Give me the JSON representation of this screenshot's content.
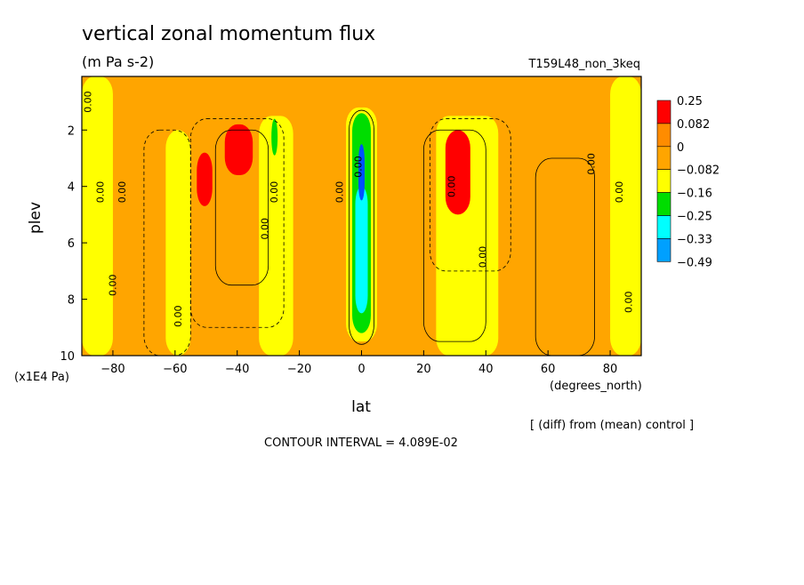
{
  "chart_data": {
    "type": "heatmap",
    "title": "vertical zonal momentum flux",
    "units": "(m Pa s-2)",
    "run_label": "T159L48_non_3keq",
    "xlabel": "lat",
    "x_units": "(degrees_north)",
    "ylabel": "plev",
    "y_units": "(x1E4 Pa)",
    "x_ticks": [
      "-80",
      "-60",
      "-40",
      "-20",
      "0",
      "20",
      "40",
      "60",
      "80"
    ],
    "y_ticks": [
      "2",
      "4",
      "6",
      "8",
      "10"
    ],
    "xlim": [
      -90,
      90
    ],
    "ylim": [
      10,
      0.1
    ],
    "contour_interval_text": "CONTOUR INTERVAL = 4.089E-02",
    "diff_note": "[ (diff) from (mean) control ]",
    "contour_labels": [
      "0.00",
      "0.00",
      "0.00",
      "0.00",
      "0.00",
      "0.00",
      "0.00",
      "0.00",
      "0.00",
      "0.00",
      "0.00",
      "0.00",
      "0.00",
      "0.00"
    ],
    "colorbar": {
      "labels": [
        "0.25",
        "0.082",
        "0",
        "−0.082",
        "−0.16",
        "−0.25",
        "−0.33",
        "−0.49"
      ],
      "colors": [
        "#ff0000",
        "#ff8c00",
        "#ffa500",
        "#ffff00",
        "#00dd00",
        "#00ffff",
        "#00a0ff",
        "#0050ff"
      ]
    },
    "regions": [
      {
        "name": "background",
        "level": "0 to 0.082",
        "color": "#ffa500"
      },
      {
        "name": "high-lat-south",
        "x": [
          -90,
          -80
        ],
        "y": [
          0.1,
          10
        ],
        "level": "-0.082 to 0",
        "color": "#ffff00"
      },
      {
        "name": "band-south-60",
        "x": [
          -63,
          -55
        ],
        "y": [
          2,
          10
        ],
        "level": "-0.082 to 0",
        "color": "#ffff00"
      },
      {
        "name": "band-south-30",
        "x": [
          -33,
          -22
        ],
        "y": [
          1.5,
          10
        ],
        "level": "-0.082 to 0",
        "color": "#ffff00"
      },
      {
        "name": "equator-yellow",
        "x": [
          -5,
          5
        ],
        "y": [
          1.2,
          9.5
        ],
        "level": "-0.082 to 0",
        "color": "#ffff00"
      },
      {
        "name": "equator-green",
        "x": [
          -3,
          3
        ],
        "y": [
          1.4,
          9.2
        ],
        "level": "-0.16 to -0.082",
        "color": "#00dd00"
      },
      {
        "name": "equator-cyan",
        "x": [
          -2,
          2
        ],
        "y": [
          4,
          8.5
        ],
        "level": "-0.25 to -0.16",
        "color": "#00ffff"
      },
      {
        "name": "equator-blue",
        "x": [
          -1,
          1
        ],
        "y": [
          2.5,
          4.5
        ],
        "level": "-0.49 to -0.33",
        "color": "#0050ff"
      },
      {
        "name": "band-north-30",
        "x": [
          24,
          44
        ],
        "y": [
          1.5,
          10
        ],
        "level": "-0.082 to 0",
        "color": "#ffff00"
      },
      {
        "name": "high-lat-north",
        "x": [
          80,
          90
        ],
        "y": [
          0.1,
          10
        ],
        "level": "-0.082 to 0",
        "color": "#ffff00"
      },
      {
        "name": "max-south-40",
        "x": [
          -44,
          -35
        ],
        "y": [
          1.8,
          3.6
        ],
        "level": "0.082 to 0.25",
        "color": "#ff0000"
      },
      {
        "name": "max-south-50",
        "x": [
          -53,
          -48
        ],
        "y": [
          2.8,
          4.7
        ],
        "level": "0.082 to 0.25",
        "color": "#ff0000"
      },
      {
        "name": "max-north-30",
        "x": [
          27,
          35
        ],
        "y": [
          2,
          5
        ],
        "level": "0.082 to 0.25",
        "color": "#ff0000"
      },
      {
        "name": "green-south-28",
        "x": [
          -29,
          -27
        ],
        "y": [
          1.6,
          2.9
        ],
        "level": "-0.16 to -0.082",
        "color": "#00dd00"
      }
    ]
  }
}
